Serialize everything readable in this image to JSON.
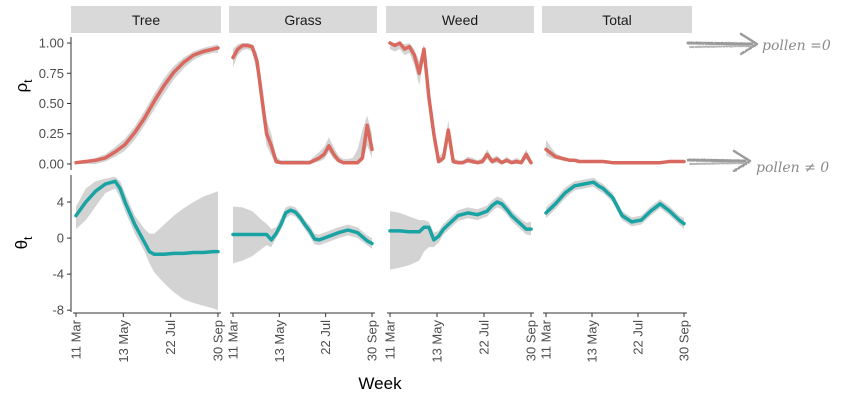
{
  "chart_data": {
    "type": "line",
    "facets": [
      "Tree",
      "Grass",
      "Weed",
      "Total"
    ],
    "xlabel": "Week",
    "x_ticks": [
      "11 Mar",
      "13 May",
      "22 Jul",
      "30 Sep"
    ],
    "x_range_weeks": [
      0,
      29
    ],
    "rows": [
      {
        "ylabel": "ρ",
        "ylabel_sub": "t",
        "ylim": [
          -0.05,
          1.05
        ],
        "y_ticks": [
          "1.00",
          "0.75",
          "0.50",
          "0.25",
          "0.00"
        ],
        "y_tick_values": [
          1.0,
          0.75,
          0.5,
          0.25,
          0.0
        ],
        "color": "#d9685f",
        "series": [
          {
            "facet": "Tree",
            "x": [
              0,
              2,
              4,
              6,
              8,
              10,
              12,
              14,
              16,
              18,
              20,
              22,
              24,
              26,
              28,
              29
            ],
            "y": [
              0.01,
              0.02,
              0.03,
              0.05,
              0.1,
              0.16,
              0.26,
              0.38,
              0.52,
              0.65,
              0.76,
              0.84,
              0.9,
              0.93,
              0.95,
              0.96
            ],
            "lower": [
              0.0,
              0.0,
              0.0,
              0.02,
              0.06,
              0.11,
              0.2,
              0.32,
              0.45,
              0.58,
              0.7,
              0.79,
              0.86,
              0.9,
              0.92,
              0.92
            ],
            "upper": [
              0.02,
              0.03,
              0.05,
              0.08,
              0.14,
              0.21,
              0.31,
              0.44,
              0.58,
              0.71,
              0.81,
              0.88,
              0.93,
              0.96,
              0.98,
              0.99
            ]
          },
          {
            "facet": "Grass",
            "x": [
              0,
              1,
              2,
              3,
              4,
              5,
              6,
              7,
              8,
              9,
              10,
              11,
              12,
              14,
              16,
              18,
              19,
              20,
              21,
              22,
              23,
              24,
              25,
              26,
              27,
              28,
              29
            ],
            "y": [
              0.88,
              0.95,
              0.98,
              0.98,
              0.97,
              0.85,
              0.55,
              0.25,
              0.15,
              0.02,
              0.01,
              0.01,
              0.01,
              0.01,
              0.01,
              0.05,
              0.08,
              0.15,
              0.08,
              0.03,
              0.01,
              0.01,
              0.01,
              0.01,
              0.05,
              0.32,
              0.12
            ],
            "lower": [
              0.8,
              0.9,
              0.94,
              0.95,
              0.93,
              0.75,
              0.42,
              0.15,
              0.07,
              0.0,
              0.0,
              0.0,
              0.0,
              0.0,
              0.0,
              0.02,
              0.04,
              0.1,
              0.04,
              0.01,
              0.0,
              0.0,
              0.0,
              0.0,
              0.02,
              0.15,
              0.05
            ],
            "upper": [
              0.95,
              0.99,
              1.0,
              1.0,
              0.99,
              0.92,
              0.68,
              0.36,
              0.25,
              0.06,
              0.03,
              0.03,
              0.03,
              0.03,
              0.03,
              0.1,
              0.14,
              0.22,
              0.14,
              0.07,
              0.04,
              0.04,
              0.05,
              0.12,
              0.28,
              0.4,
              0.25
            ]
          },
          {
            "facet": "Weed",
            "x": [
              0,
              1,
              2,
              3,
              4,
              5,
              6,
              7,
              8,
              9,
              10,
              11,
              12,
              13,
              14,
              15,
              16,
              17,
              18,
              19,
              20,
              21,
              22,
              23,
              24,
              25,
              26,
              27,
              28,
              29
            ],
            "y": [
              1.0,
              0.98,
              1.0,
              0.95,
              0.97,
              0.9,
              0.75,
              0.95,
              0.55,
              0.25,
              0.02,
              0.05,
              0.28,
              0.02,
              0.01,
              0.01,
              0.03,
              0.02,
              0.01,
              0.02,
              0.08,
              0.02,
              0.04,
              0.01,
              0.03,
              0.01,
              0.02,
              0.01,
              0.08,
              0.01
            ],
            "lower": [
              0.95,
              0.93,
              0.95,
              0.9,
              0.92,
              0.82,
              0.65,
              0.88,
              0.45,
              0.15,
              0.0,
              0.02,
              0.2,
              0.0,
              0.0,
              0.0,
              0.01,
              0.0,
              0.0,
              0.0,
              0.04,
              0.0,
              0.01,
              0.0,
              0.01,
              0.0,
              0.0,
              0.0,
              0.04,
              0.0
            ],
            "upper": [
              1.0,
              1.0,
              1.0,
              0.99,
              1.0,
              0.95,
              0.85,
              0.99,
              0.65,
              0.35,
              0.06,
              0.1,
              0.36,
              0.05,
              0.03,
              0.03,
              0.06,
              0.05,
              0.03,
              0.05,
              0.12,
              0.05,
              0.07,
              0.03,
              0.06,
              0.03,
              0.05,
              0.03,
              0.12,
              0.04
            ]
          },
          {
            "facet": "Total",
            "x": [
              0,
              1,
              2,
              3,
              4,
              5,
              6,
              7,
              8,
              10,
              12,
              14,
              16,
              18,
              20,
              22,
              24,
              26,
              28,
              29
            ],
            "y": [
              0.12,
              0.09,
              0.06,
              0.05,
              0.04,
              0.03,
              0.03,
              0.02,
              0.02,
              0.02,
              0.02,
              0.01,
              0.01,
              0.01,
              0.01,
              0.01,
              0.01,
              0.02,
              0.02,
              0.02
            ],
            "lower": [
              0.07,
              0.05,
              0.04,
              0.03,
              0.02,
              0.02,
              0.02,
              0.01,
              0.01,
              0.01,
              0.01,
              0.0,
              0.0,
              0.0,
              0.0,
              0.0,
              0.0,
              0.01,
              0.01,
              0.01
            ],
            "upper": [
              0.2,
              0.14,
              0.09,
              0.07,
              0.05,
              0.04,
              0.04,
              0.03,
              0.03,
              0.03,
              0.03,
              0.02,
              0.02,
              0.02,
              0.02,
              0.02,
              0.02,
              0.03,
              0.03,
              0.03
            ]
          }
        ]
      },
      {
        "ylabel": "θ",
        "ylabel_sub": "t",
        "ylim": [
          -8.2,
          7.0
        ],
        "y_ticks": [
          "4",
          "0",
          "-4",
          "-8"
        ],
        "y_tick_values": [
          4,
          0,
          -4,
          -8
        ],
        "color": "#1aa3a3",
        "series": [
          {
            "facet": "Tree",
            "x": [
              0,
              2,
              4,
              6,
              8,
              9,
              10,
              12,
              14,
              15,
              16,
              18,
              20,
              22,
              24,
              26,
              28,
              29
            ],
            "y": [
              2.5,
              4.0,
              5.2,
              6.0,
              6.3,
              5.5,
              4.0,
              1.5,
              -0.5,
              -1.5,
              -1.8,
              -1.8,
              -1.7,
              -1.7,
              -1.6,
              -1.6,
              -1.5,
              -1.5
            ],
            "lower": [
              1.0,
              2.0,
              3.5,
              5.0,
              5.5,
              4.5,
              3.0,
              0.5,
              -1.5,
              -2.8,
              -3.8,
              -5.0,
              -6.0,
              -6.8,
              -7.2,
              -7.5,
              -7.8,
              -8.0
            ],
            "upper": [
              3.5,
              5.5,
              6.3,
              6.6,
              6.8,
              6.3,
              5.0,
              2.5,
              1.0,
              0.5,
              0.5,
              1.5,
              2.5,
              3.3,
              4.0,
              4.6,
              5.0,
              5.2
            ]
          },
          {
            "facet": "Grass",
            "x": [
              0,
              2,
              4,
              6,
              7,
              8,
              9,
              10,
              11,
              12,
              13,
              14,
              15,
              16,
              17,
              18,
              20,
              22,
              24,
              26,
              28,
              29
            ],
            "y": [
              0.4,
              0.4,
              0.4,
              0.4,
              0.4,
              -0.2,
              0.5,
              1.5,
              2.8,
              3.1,
              2.9,
              2.3,
              1.5,
              0.8,
              -0.1,
              -0.2,
              0.2,
              0.6,
              0.9,
              0.6,
              -0.3,
              -0.6
            ],
            "lower": [
              -2.8,
              -2.5,
              -2.0,
              -1.2,
              -0.8,
              -1.0,
              0.0,
              0.9,
              2.2,
              2.6,
              2.4,
              1.8,
              1.0,
              0.2,
              -0.7,
              -0.8,
              -0.4,
              0.0,
              0.3,
              0.0,
              -0.8,
              -1.2
            ],
            "upper": [
              3.5,
              3.4,
              3.0,
              2.0,
              1.6,
              1.0,
              1.2,
              2.2,
              3.4,
              3.6,
              3.4,
              2.8,
              2.0,
              1.4,
              0.5,
              0.4,
              0.8,
              1.2,
              1.5,
              1.2,
              0.3,
              0.0
            ]
          },
          {
            "facet": "Weed",
            "x": [
              0,
              2,
              4,
              6,
              7,
              8,
              9,
              10,
              11,
              12,
              13,
              14,
              16,
              18,
              20,
              21,
              22,
              23,
              24,
              25,
              26,
              27,
              28,
              29
            ],
            "y": [
              0.8,
              0.8,
              0.7,
              0.7,
              1.2,
              1.2,
              -0.2,
              0.2,
              1.0,
              1.5,
              2.0,
              2.5,
              2.8,
              2.6,
              3.0,
              3.6,
              4.0,
              3.8,
              3.2,
              2.5,
              2.0,
              1.5,
              1.0,
              1.0
            ],
            "lower": [
              -3.5,
              -3.3,
              -3.0,
              -2.5,
              -1.5,
              -1.0,
              -1.0,
              -0.5,
              0.4,
              0.9,
              1.4,
              1.9,
              2.2,
              2.0,
              2.4,
              3.0,
              3.4,
              3.2,
              2.6,
              1.9,
              1.4,
              0.9,
              0.4,
              0.3
            ],
            "upper": [
              3.0,
              2.8,
              2.4,
              2.0,
              2.0,
              1.8,
              0.6,
              0.8,
              1.6,
              2.1,
              2.6,
              3.1,
              3.4,
              3.2,
              3.6,
              4.2,
              4.6,
              4.4,
              3.8,
              3.1,
              2.6,
              2.1,
              1.7,
              1.8
            ]
          },
          {
            "facet": "Total",
            "x": [
              0,
              2,
              4,
              6,
              8,
              10,
              11,
              12,
              14,
              16,
              18,
              20,
              22,
              24,
              26,
              28,
              29
            ],
            "y": [
              2.8,
              3.8,
              5.0,
              5.8,
              6.0,
              6.2,
              5.8,
              5.5,
              4.5,
              2.5,
              1.8,
              2.0,
              3.0,
              3.8,
              3.0,
              2.0,
              1.6
            ],
            "lower": [
              2.2,
              3.2,
              4.4,
              5.3,
              5.5,
              5.7,
              5.3,
              5.0,
              4.0,
              2.0,
              1.3,
              1.5,
              2.5,
              3.3,
              2.5,
              1.5,
              1.0
            ],
            "upper": [
              3.4,
              4.4,
              5.6,
              6.3,
              6.5,
              6.7,
              6.3,
              6.0,
              5.0,
              3.0,
              2.3,
              2.5,
              3.5,
              4.3,
              3.5,
              2.5,
              2.2
            ]
          }
        ]
      }
    ]
  },
  "annotations": [
    {
      "row": 0,
      "text": "pollen =0"
    },
    {
      "row": 1,
      "text": "pollen ≠ 0"
    }
  ]
}
